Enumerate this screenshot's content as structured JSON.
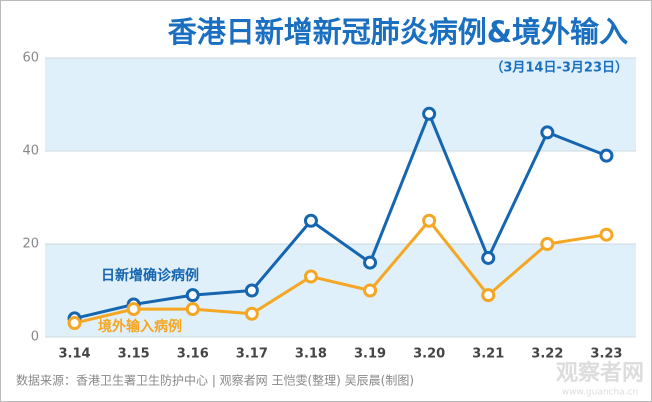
{
  "chart_data": {
    "type": "line",
    "title": "香港日新增新冠肺炎病例&境外输入",
    "subtitle": "（3月14日-3月23日）",
    "categories": [
      "3.14",
      "3.15",
      "3.16",
      "3.17",
      "3.18",
      "3.19",
      "3.20",
      "3.21",
      "3.22",
      "3.23"
    ],
    "series": [
      {
        "name": "日新增确诊病例",
        "color": "#1565b0",
        "values": [
          4,
          7,
          9,
          10,
          25,
          16,
          48,
          17,
          44,
          39
        ]
      },
      {
        "name": "境外输入病例",
        "color": "#f5a623",
        "values": [
          3,
          6,
          6,
          5,
          13,
          10,
          25,
          9,
          20,
          22
        ]
      }
    ],
    "ylim": [
      0,
      60
    ],
    "yticks": [
      0,
      20,
      40,
      60
    ],
    "grid": true,
    "source": "数据来源：香港卫生署卫生防护中心  |  观察者网 王恺雯(整理) 吴辰晨(制图)",
    "watermark": "观察者网",
    "watermark_url": "www.guancha.cn"
  }
}
